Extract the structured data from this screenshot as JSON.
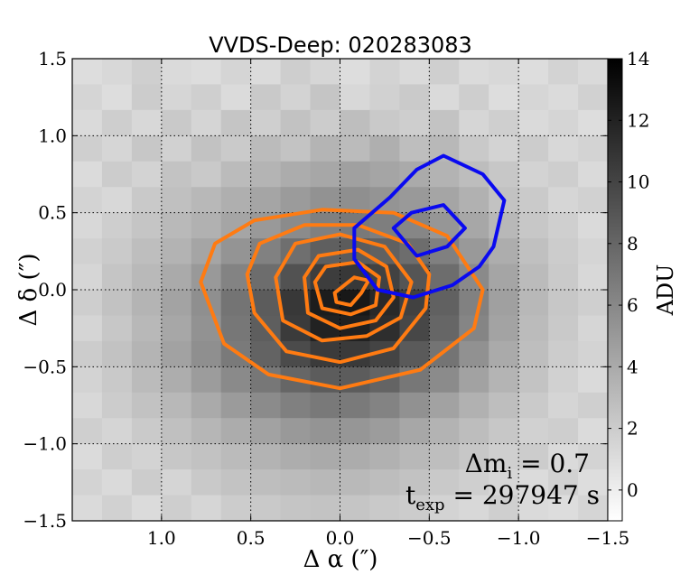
{
  "chart_data": {
    "type": "heatmap",
    "title": "VVDS-Deep: 020283083",
    "xlabel": "Δ α  (″)",
    "ylabel": "Δ δ  (″)",
    "colorbar_label": "ADU",
    "xlim": [
      1.5,
      -1.5
    ],
    "ylim": [
      -1.5,
      1.5
    ],
    "clim": [
      -1,
      14
    ],
    "x_ticks": [
      1.0,
      0.5,
      0.0,
      -0.5,
      -1.0,
      -1.5
    ],
    "x_tick_labels": [
      "1.0",
      "0.5",
      "0.0",
      "−0.5",
      "−1.0",
      "−1.5"
    ],
    "y_ticks": [
      1.5,
      1.0,
      0.5,
      0.0,
      -0.5,
      -1.0,
      -1.5
    ],
    "y_tick_labels": [
      "1.5",
      "1.0",
      "0.5",
      "0.0",
      "−0.5",
      "−1.0",
      "−1.5"
    ],
    "colorbar_ticks": [
      0,
      2,
      4,
      6,
      8,
      10,
      12,
      14
    ],
    "colorbar_tick_labels": [
      "0",
      "2",
      "4",
      "6",
      "8",
      "10",
      "12",
      "14"
    ],
    "grid": true,
    "annotations": [
      {
        "name": "delta-mi",
        "text": "Δm_i = 0.7",
        "base": "Δm",
        "sub": "i",
        "tail": " = 0.7"
      },
      {
        "name": "t-exp",
        "text": "t_exp = 297947 s",
        "base": "t",
        "sub": "exp",
        "tail": " = 297947 s"
      }
    ],
    "image": {
      "description": "18 x 18 pixel stamp, ADU values; row 0 is the top (Δδ ≈ +1.5″), column 0 is the left (Δα ≈ +1.5″)",
      "cell_size_arcsec": 0.1667,
      "rows": [
        [
          1.0,
          1.3,
          1.8,
          1.2,
          1.0,
          1.5,
          1.1,
          1.9,
          1.4,
          1.0,
          1.6,
          1.2,
          1.8,
          1.1,
          1.3,
          1.0,
          1.6,
          1.2
        ],
        [
          1.5,
          1.0,
          2.0,
          1.4,
          1.8,
          1.1,
          2.2,
          1.6,
          2.4,
          1.3,
          1.7,
          2.1,
          1.2,
          1.9,
          1.0,
          1.4,
          1.1,
          1.7
        ],
        [
          1.2,
          1.9,
          1.3,
          2.2,
          1.5,
          2.4,
          1.8,
          2.6,
          2.0,
          2.8,
          2.2,
          1.9,
          2.5,
          1.4,
          1.8,
          1.2,
          1.5,
          1.0
        ],
        [
          1.8,
          1.4,
          2.3,
          1.7,
          2.6,
          2.1,
          3.0,
          2.5,
          3.4,
          3.0,
          3.7,
          2.8,
          3.2,
          2.2,
          1.6,
          2.0,
          1.3,
          1.6
        ],
        [
          1.1,
          2.0,
          1.6,
          2.5,
          2.2,
          3.0,
          3.4,
          3.9,
          4.2,
          4.6,
          4.3,
          4.0,
          3.5,
          2.9,
          2.3,
          1.6,
          1.9,
          1.2
        ],
        [
          1.6,
          1.3,
          2.2,
          2.7,
          3.2,
          3.7,
          4.3,
          4.9,
          5.4,
          5.6,
          5.3,
          5.0,
          4.3,
          3.6,
          2.6,
          2.1,
          1.4,
          1.7
        ],
        [
          1.3,
          1.9,
          2.4,
          3.1,
          3.6,
          4.3,
          5.0,
          5.8,
          6.5,
          6.9,
          6.6,
          6.1,
          5.2,
          4.2,
          3.2,
          2.3,
          1.8,
          1.2
        ],
        [
          1.7,
          2.1,
          2.8,
          3.5,
          4.3,
          5.3,
          6.4,
          7.5,
          8.4,
          8.6,
          8.3,
          7.6,
          6.5,
          5.0,
          3.8,
          2.7,
          2.0,
          1.5
        ],
        [
          1.4,
          2.4,
          3.1,
          4.0,
          5.0,
          6.3,
          7.6,
          9.2,
          10.4,
          10.7,
          10.1,
          9.0,
          7.6,
          5.9,
          4.3,
          3.0,
          2.1,
          1.3
        ],
        [
          1.9,
          2.6,
          3.4,
          4.4,
          5.6,
          7.2,
          8.6,
          10.7,
          12.3,
          12.6,
          11.6,
          10.2,
          8.3,
          6.4,
          4.6,
          3.2,
          2.3,
          1.8
        ],
        [
          1.5,
          2.3,
          3.2,
          4.2,
          5.4,
          7.0,
          8.5,
          10.5,
          12.0,
          12.1,
          11.3,
          9.8,
          8.0,
          6.2,
          4.4,
          3.0,
          2.2,
          1.4
        ],
        [
          2.0,
          2.6,
          3.4,
          4.5,
          5.6,
          6.8,
          8.2,
          9.6,
          10.5,
          10.6,
          10.0,
          8.7,
          7.2,
          5.5,
          4.0,
          2.8,
          2.0,
          1.6
        ],
        [
          1.6,
          2.2,
          3.0,
          3.8,
          4.8,
          5.9,
          7.0,
          8.0,
          8.6,
          8.6,
          8.1,
          7.0,
          5.8,
          4.5,
          3.4,
          2.5,
          1.7,
          1.2
        ],
        [
          1.3,
          2.0,
          2.6,
          3.2,
          4.0,
          4.9,
          5.8,
          6.5,
          6.9,
          6.8,
          6.3,
          5.5,
          4.5,
          3.6,
          2.8,
          2.1,
          1.5,
          1.8
        ],
        [
          1.8,
          1.5,
          2.1,
          2.7,
          3.3,
          3.9,
          4.5,
          5.0,
          5.3,
          5.2,
          4.8,
          4.2,
          3.5,
          2.9,
          2.3,
          1.7,
          1.9,
          1.1
        ],
        [
          1.1,
          1.9,
          1.6,
          2.3,
          2.6,
          3.0,
          3.5,
          3.8,
          4.0,
          3.9,
          3.6,
          3.2,
          2.8,
          2.3,
          1.8,
          2.0,
          1.2,
          1.6
        ],
        [
          1.6,
          1.2,
          2.0,
          1.5,
          2.2,
          2.5,
          2.8,
          3.0,
          3.2,
          3.1,
          2.9,
          2.6,
          2.2,
          1.8,
          1.4,
          1.1,
          1.7,
          1.0
        ],
        [
          1.2,
          1.7,
          1.1,
          1.9,
          1.4,
          2.0,
          2.2,
          2.4,
          2.5,
          2.4,
          2.2,
          2.0,
          1.6,
          1.3,
          1.8,
          1.2,
          1.0,
          1.5
        ]
      ]
    },
    "series": [
      {
        "name": "orange-contours",
        "color": "#ff7b12",
        "contours": [
          [
            [
              0.78,
              0.05
            ],
            [
              0.7,
              0.3
            ],
            [
              0.48,
              0.45
            ],
            [
              0.1,
              0.52
            ],
            [
              -0.3,
              0.5
            ],
            [
              -0.6,
              0.35
            ],
            [
              -0.8,
              0.0
            ],
            [
              -0.75,
              -0.25
            ],
            [
              -0.45,
              -0.52
            ],
            [
              0.0,
              -0.64
            ],
            [
              0.4,
              -0.55
            ],
            [
              0.65,
              -0.35
            ]
          ],
          [
            [
              0.52,
              0.1
            ],
            [
              0.45,
              0.3
            ],
            [
              0.2,
              0.42
            ],
            [
              -0.1,
              0.42
            ],
            [
              -0.38,
              0.3
            ],
            [
              -0.5,
              0.1
            ],
            [
              -0.48,
              -0.12
            ],
            [
              -0.3,
              -0.38
            ],
            [
              0.0,
              -0.47
            ],
            [
              0.3,
              -0.4
            ],
            [
              0.48,
              -0.15
            ]
          ],
          [
            [
              0.36,
              0.08
            ],
            [
              0.25,
              0.3
            ],
            [
              0.0,
              0.36
            ],
            [
              -0.25,
              0.28
            ],
            [
              -0.4,
              0.05
            ],
            [
              -0.34,
              -0.18
            ],
            [
              -0.15,
              -0.3
            ],
            [
              0.1,
              -0.33
            ],
            [
              0.32,
              -0.2
            ]
          ],
          [
            [
              0.2,
              0.08
            ],
            [
              0.12,
              0.22
            ],
            [
              -0.1,
              0.26
            ],
            [
              -0.26,
              0.15
            ],
            [
              -0.3,
              -0.05
            ],
            [
              -0.2,
              -0.2
            ],
            [
              0.0,
              -0.25
            ],
            [
              0.18,
              -0.15
            ]
          ],
          [
            [
              0.14,
              0.05
            ],
            [
              0.08,
              0.15
            ],
            [
              -0.1,
              0.18
            ],
            [
              -0.22,
              0.08
            ],
            [
              -0.2,
              -0.1
            ],
            [
              -0.06,
              -0.16
            ],
            [
              0.1,
              -0.12
            ]
          ],
          [
            [
              0.03,
              -0.02
            ],
            [
              -0.08,
              0.08
            ],
            [
              -0.16,
              0.06
            ],
            [
              -0.12,
              -0.02
            ],
            [
              -0.06,
              -0.1
            ],
            [
              0.02,
              -0.08
            ]
          ]
        ]
      },
      {
        "name": "blue-contours",
        "color": "#0a0af0",
        "contours": [
          [
            [
              -0.08,
              0.4
            ],
            [
              -0.28,
              0.6
            ],
            [
              -0.43,
              0.78
            ],
            [
              -0.58,
              0.87
            ],
            [
              -0.8,
              0.75
            ],
            [
              -0.92,
              0.58
            ],
            [
              -0.86,
              0.28
            ],
            [
              -0.78,
              0.15
            ],
            [
              -0.63,
              0.03
            ],
            [
              -0.41,
              -0.05
            ],
            [
              -0.21,
              0.0
            ],
            [
              -0.08,
              0.2
            ]
          ],
          [
            [
              -0.3,
              0.4
            ],
            [
              -0.4,
              0.5
            ],
            [
              -0.58,
              0.55
            ],
            [
              -0.7,
              0.4
            ],
            [
              -0.6,
              0.28
            ],
            [
              -0.43,
              0.22
            ]
          ]
        ]
      }
    ]
  }
}
